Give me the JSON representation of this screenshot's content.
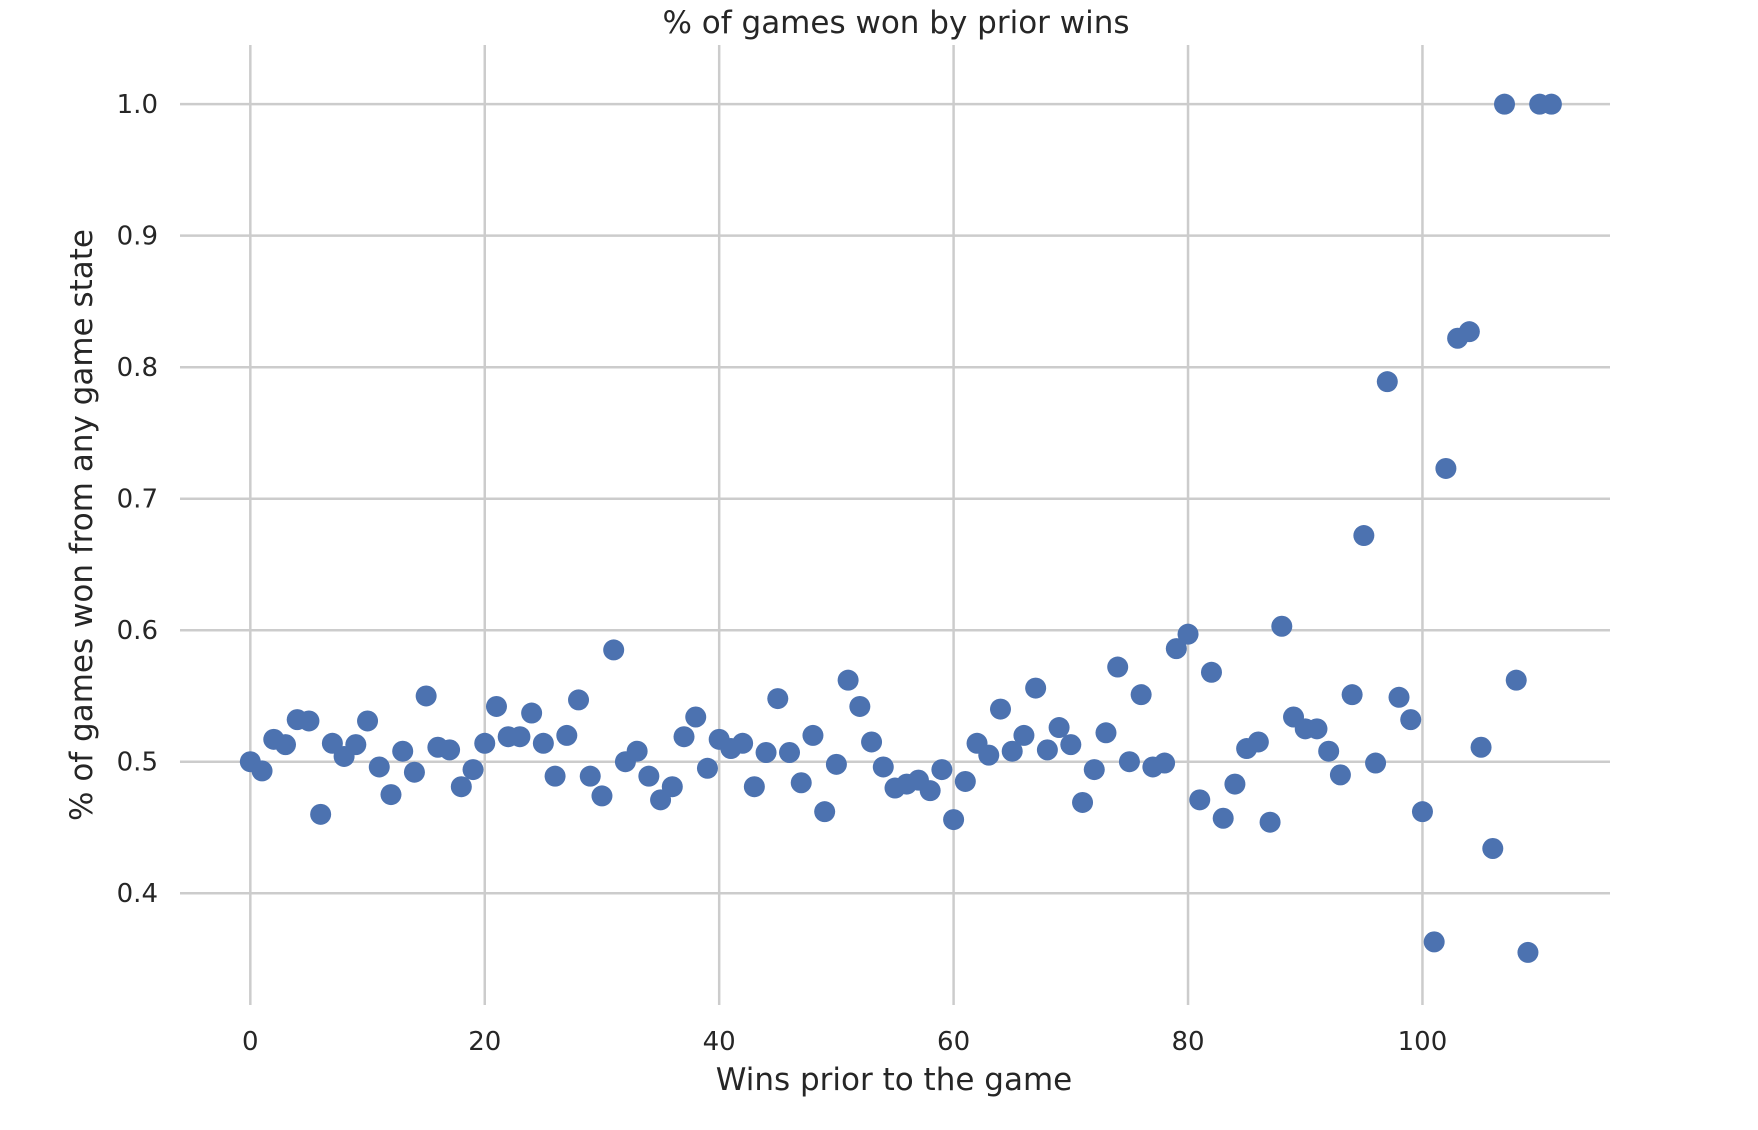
{
  "chart_data": {
    "type": "scatter",
    "title": "% of games won by prior wins",
    "xlabel": "Wins prior to the game",
    "ylabel": "% of games won from any game state",
    "xlim": [
      -6,
      116
    ],
    "ylim": [
      0.315,
      1.045
    ],
    "xticks": [
      0,
      20,
      40,
      60,
      80,
      100
    ],
    "yticks": [
      0.4,
      0.5,
      0.6,
      0.7,
      0.8,
      0.9,
      1.0
    ],
    "ytick_labels": [
      "0.4",
      "0.5",
      "0.6",
      "0.7",
      "0.8",
      "0.9",
      "1.0"
    ],
    "grid": true,
    "point_color": "#4c72b0",
    "points": [
      [
        0,
        0.5
      ],
      [
        1,
        0.493
      ],
      [
        2,
        0.517
      ],
      [
        3,
        0.513
      ],
      [
        4,
        0.532
      ],
      [
        5,
        0.531
      ],
      [
        6,
        0.46
      ],
      [
        7,
        0.514
      ],
      [
        8,
        0.504
      ],
      [
        9,
        0.513
      ],
      [
        10,
        0.531
      ],
      [
        11,
        0.496
      ],
      [
        12,
        0.475
      ],
      [
        13,
        0.508
      ],
      [
        14,
        0.492
      ],
      [
        15,
        0.55
      ],
      [
        16,
        0.511
      ],
      [
        17,
        0.509
      ],
      [
        18,
        0.481
      ],
      [
        19,
        0.494
      ],
      [
        20,
        0.514
      ],
      [
        21,
        0.542
      ],
      [
        22,
        0.519
      ],
      [
        23,
        0.519
      ],
      [
        24,
        0.537
      ],
      [
        25,
        0.514
      ],
      [
        26,
        0.489
      ],
      [
        27,
        0.52
      ],
      [
        28,
        0.547
      ],
      [
        29,
        0.489
      ],
      [
        30,
        0.474
      ],
      [
        31,
        0.585
      ],
      [
        32,
        0.5
      ],
      [
        33,
        0.508
      ],
      [
        34,
        0.489
      ],
      [
        35,
        0.471
      ],
      [
        36,
        0.481
      ],
      [
        37,
        0.519
      ],
      [
        38,
        0.534
      ],
      [
        39,
        0.495
      ],
      [
        40,
        0.517
      ],
      [
        41,
        0.51
      ],
      [
        42,
        0.514
      ],
      [
        43,
        0.481
      ],
      [
        44,
        0.507
      ],
      [
        45,
        0.548
      ],
      [
        46,
        0.507
      ],
      [
        47,
        0.484
      ],
      [
        48,
        0.52
      ],
      [
        49,
        0.462
      ],
      [
        50,
        0.498
      ],
      [
        51,
        0.562
      ],
      [
        52,
        0.542
      ],
      [
        53,
        0.515
      ],
      [
        54,
        0.496
      ],
      [
        55,
        0.48
      ],
      [
        56,
        0.483
      ],
      [
        57,
        0.486
      ],
      [
        58,
        0.478
      ],
      [
        59,
        0.494
      ],
      [
        60,
        0.456
      ],
      [
        61,
        0.485
      ],
      [
        62,
        0.514
      ],
      [
        63,
        0.505
      ],
      [
        64,
        0.54
      ],
      [
        65,
        0.508
      ],
      [
        66,
        0.52
      ],
      [
        67,
        0.556
      ],
      [
        68,
        0.509
      ],
      [
        69,
        0.526
      ],
      [
        70,
        0.513
      ],
      [
        71,
        0.469
      ],
      [
        72,
        0.494
      ],
      [
        73,
        0.522
      ],
      [
        74,
        0.572
      ],
      [
        75,
        0.5
      ],
      [
        76,
        0.551
      ],
      [
        77,
        0.496
      ],
      [
        78,
        0.499
      ],
      [
        79,
        0.586
      ],
      [
        80,
        0.597
      ],
      [
        81,
        0.471
      ],
      [
        82,
        0.568
      ],
      [
        83,
        0.457
      ],
      [
        84,
        0.483
      ],
      [
        85,
        0.51
      ],
      [
        86,
        0.515
      ],
      [
        87,
        0.454
      ],
      [
        88,
        0.603
      ],
      [
        89,
        0.534
      ],
      [
        90,
        0.525
      ],
      [
        91,
        0.525
      ],
      [
        92,
        0.508
      ],
      [
        93,
        0.49
      ],
      [
        94,
        0.551
      ],
      [
        95,
        0.672
      ],
      [
        96,
        0.499
      ],
      [
        97,
        0.789
      ],
      [
        98,
        0.549
      ],
      [
        99,
        0.532
      ],
      [
        100,
        0.462
      ],
      [
        101,
        0.363
      ],
      [
        102,
        0.723
      ],
      [
        103,
        0.822
      ],
      [
        104,
        0.827
      ],
      [
        105,
        0.511
      ],
      [
        106,
        0.434
      ],
      [
        107,
        1.0
      ],
      [
        108,
        0.562
      ],
      [
        109,
        0.355
      ],
      [
        110,
        1.0
      ],
      [
        111,
        1.0
      ]
    ]
  }
}
